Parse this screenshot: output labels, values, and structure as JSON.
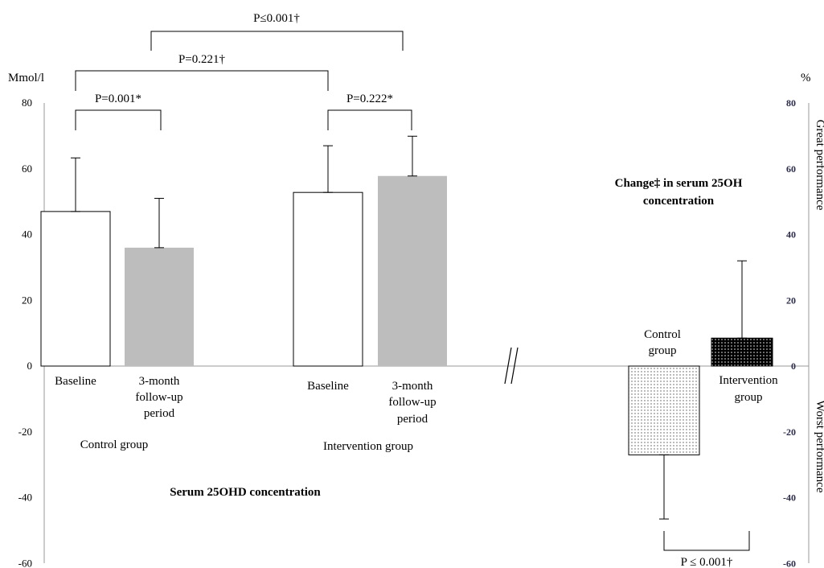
{
  "chart_data": {
    "type": "bar",
    "left_panel": {
      "axis_unit": "Mmol/l",
      "ylim": [
        -60,
        80
      ],
      "ticks": [
        -60,
        -40,
        -20,
        0,
        20,
        40,
        60,
        80
      ],
      "groups": [
        {
          "name": "Control group",
          "bars": [
            {
              "label": "Baseline",
              "value": 47,
              "error": 16.3,
              "fill": "white"
            },
            {
              "label": "3-month follow-up period",
              "label_lines": [
                "3-month",
                "follow-up",
                "period"
              ],
              "value": 36,
              "error": 15,
              "fill": "gray"
            }
          ]
        },
        {
          "name": "Intervention group",
          "bars": [
            {
              "label": "Baseline",
              "value": 52.8,
              "error": 14.2,
              "fill": "white"
            },
            {
              "label": "3-month follow-up period",
              "label_lines": [
                "3-month",
                "follow-up",
                "period"
              ],
              "value": 57.8,
              "error": 12.1,
              "fill": "gray"
            }
          ]
        }
      ],
      "title": "Serum 25OHD concentration",
      "annotations": [
        {
          "text": "P=0.001*",
          "between": [
            "Control Baseline",
            "Control 3-month"
          ]
        },
        {
          "text": "P=0.222*",
          "between": [
            "Intervention Baseline",
            "Intervention 3-month"
          ]
        },
        {
          "text": "P=0.221†",
          "between": [
            "Control Baseline",
            "Intervention Baseline"
          ]
        },
        {
          "text": "P≤0.001†",
          "between": [
            "Control 3-month",
            "Intervention 3-month"
          ]
        }
      ]
    },
    "right_panel": {
      "axis_unit": "%",
      "ylim": [
        -60,
        80
      ],
      "ticks": [
        -60,
        -40,
        -20,
        0,
        20,
        40,
        60,
        80
      ],
      "title_lines": [
        "Change‡ in serum 25OH",
        "concentration"
      ],
      "positive_label": "Great performance",
      "negative_label": "Worst performance",
      "bars": [
        {
          "label": "Control group",
          "label_lines": [
            "Control",
            "group"
          ],
          "value": -27,
          "error": 19.5,
          "fill": "dotted-light"
        },
        {
          "label": "Intervention group",
          "label_lines": [
            "Intervention",
            "group"
          ],
          "value": 8.5,
          "error": 23.5,
          "fill": "dotted-dark"
        }
      ],
      "annotation": "P ≤ 0.001†"
    }
  }
}
